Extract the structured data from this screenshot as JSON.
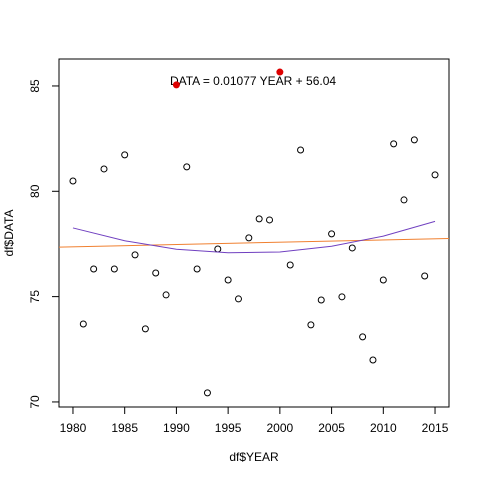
{
  "chart_data": {
    "type": "scatter",
    "x_label": "df$YEAR",
    "y_label": "df$DATA",
    "annotation": "DATA = 0.01077 YEAR + 56.04",
    "xlim": [
      1978.65,
      2016.35
    ],
    "ylim": [
      69.76,
      86.28
    ],
    "xticks": [
      1980,
      1985,
      1990,
      1995,
      2000,
      2005,
      2010,
      2015
    ],
    "yticks": [
      70,
      75,
      80,
      85
    ],
    "series": [
      {
        "color": "#000000",
        "marker": "open",
        "x": [
          1980,
          1981,
          1982,
          1983,
          1984,
          1985,
          1986,
          1987,
          1988,
          1989,
          1991,
          1992,
          1993,
          1994,
          1995,
          1996,
          1997,
          1998,
          1999,
          2001,
          2002,
          2003,
          2004,
          2005,
          2006,
          2007,
          2008,
          2009,
          2010,
          2011,
          2012,
          2013,
          2014,
          2015
        ],
        "values": [
          80.49,
          73.7,
          76.31,
          81.06,
          76.31,
          81.73,
          76.98,
          73.47,
          76.12,
          75.08,
          81.16,
          76.31,
          70.43,
          77.26,
          75.79,
          74.89,
          77.79,
          78.69,
          78.64,
          76.5,
          81.96,
          73.66,
          74.84,
          77.98,
          74.99,
          77.31,
          73.09,
          71.99,
          75.79,
          82.25,
          79.59,
          82.44,
          75.98,
          80.78
        ]
      },
      {
        "color": "#dd0000",
        "marker": "filled",
        "x": [
          1990,
          2000
        ],
        "values": [
          85.05,
          85.66
        ]
      },
      {
        "color": "#f08030",
        "marker": "line",
        "x": [
          1978.65,
          2016.35
        ],
        "values": [
          77.35,
          77.76
        ]
      },
      {
        "color": "#7040c0",
        "marker": "line",
        "x": [
          1980,
          1985,
          1990,
          1995,
          2000,
          2005,
          2010,
          2015
        ],
        "values": [
          78.26,
          77.65,
          77.25,
          77.08,
          77.12,
          77.39,
          77.87,
          78.57
        ]
      }
    ]
  }
}
